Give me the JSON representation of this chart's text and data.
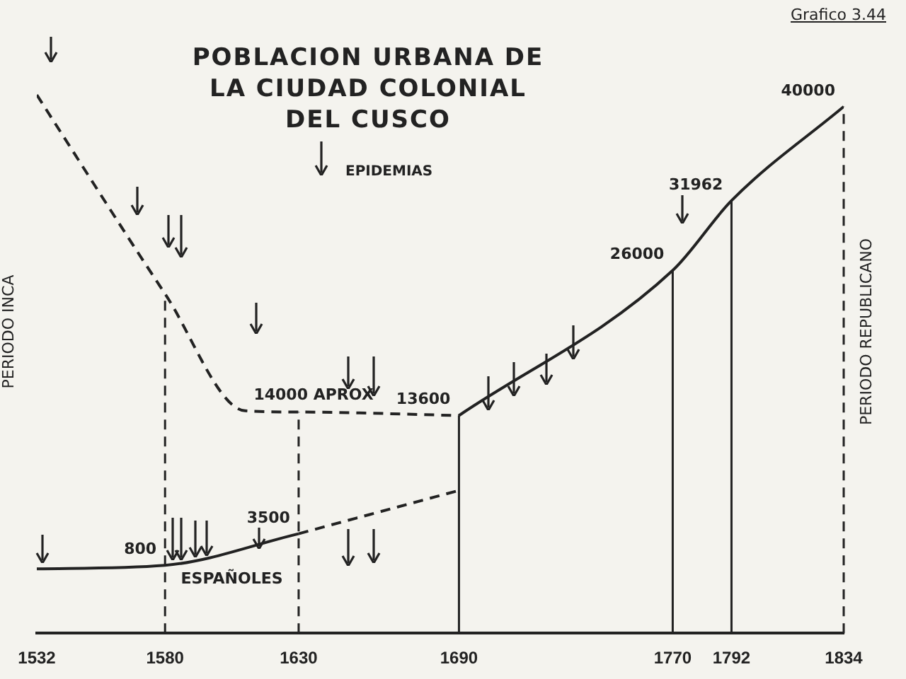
{
  "chart_data": {
    "type": "line",
    "title": "POBLACION URBANA DE LA CIUDAD COLONIAL DEL CUSCO",
    "xlim": [
      1532,
      1834
    ],
    "xticks": [
      1532,
      1580,
      1630,
      1690,
      1770,
      1792,
      1834
    ],
    "tick_labels": "x",
    "series": [
      {
        "color": "#222222",
        "line_style": "dashed",
        "x": [
          1532,
          1580,
          1610,
          1630,
          1690
        ],
        "values": [
          41000,
          24000,
          14000,
          13900,
          13600
        ],
        "value_labels": [
          null,
          null,
          "14000 APROX",
          null,
          null
        ]
      },
      {
        "color": "#222222",
        "line_style": "solid",
        "x": [
          1690,
          1770,
          1792,
          1834
        ],
        "values": [
          13600,
          26000,
          31962,
          40000
        ],
        "value_labels": [
          "13600",
          "26000",
          "31962",
          "40000"
        ]
      },
      {
        "name": "ESPAÑOLES",
        "color": "#222222",
        "line_style": "solid",
        "x": [
          1532,
          1580,
          1630
        ],
        "values": [
          500,
          800,
          3500
        ],
        "value_labels": [
          null,
          "800",
          "3500"
        ]
      },
      {
        "color": "#222222",
        "line_style": "dashed",
        "x": [
          1630,
          1690
        ],
        "values": [
          3500,
          7200
        ]
      }
    ],
    "ref_lines": [
      {
        "axis": "x",
        "value": 1580,
        "line_style": "dashed"
      },
      {
        "axis": "x",
        "value": 1630,
        "line_style": "dashed"
      },
      {
        "axis": "x",
        "value": 1690,
        "line_style": "solid"
      },
      {
        "axis": "x",
        "value": 1770,
        "line_style": "solid"
      },
      {
        "axis": "x",
        "value": 1792,
        "line_style": "solid"
      },
      {
        "axis": "x",
        "value": 1834,
        "line_style": "dashed"
      }
    ],
    "annotations": [
      "Grafico 3.44",
      "EPIDEMIAS",
      "PERIODO INCA",
      "PERIODO REPUBLICANO"
    ]
  }
}
